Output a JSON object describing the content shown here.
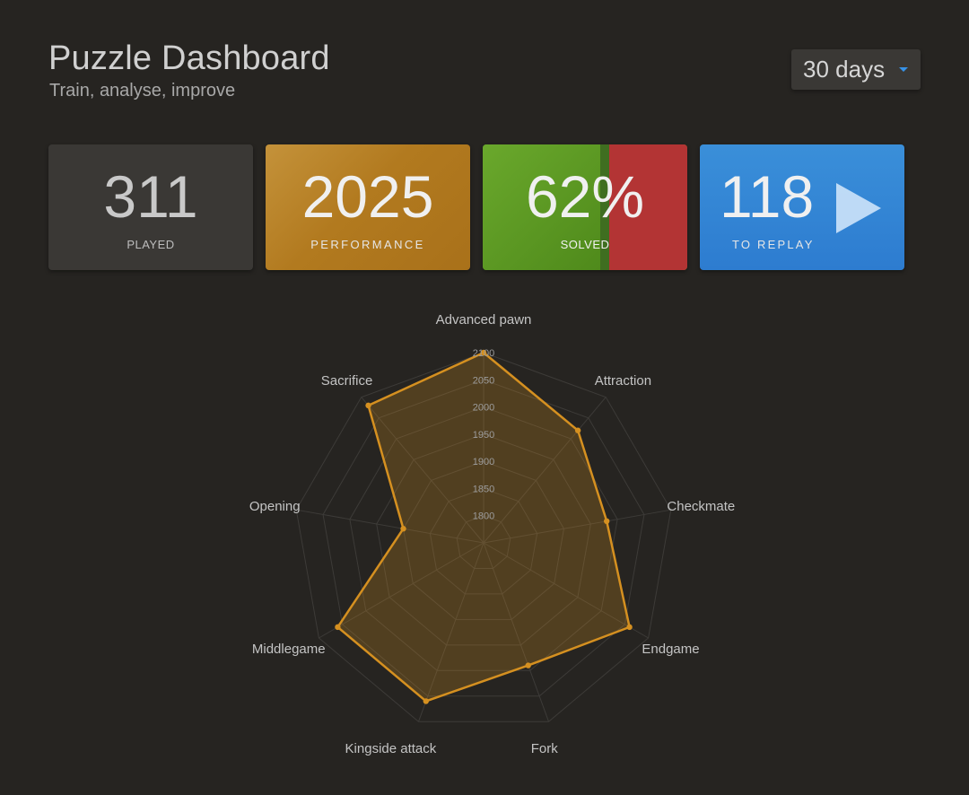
{
  "header": {
    "title": "Puzzle Dashboard",
    "subtitle": "Train, analyse, improve",
    "period": {
      "selected": "30 days"
    }
  },
  "cards": {
    "played": {
      "value": "311",
      "label": "PLAYED"
    },
    "performance": {
      "value": "2025",
      "label": "PERFORMANCE"
    },
    "solved": {
      "value": "62%",
      "label": "SOLVED",
      "percent": 62
    },
    "replay": {
      "value": "118",
      "label": "TO REPLAY"
    }
  },
  "colors": {
    "background": "#262421",
    "played": "#3a3835",
    "performance": "#b27a1f",
    "solved_green": "#629924",
    "solved_red": "#b33434",
    "replay": "#2d7cd0",
    "radar_line": "#d59020",
    "radar_fill": "rgba(213,144,32,0.25)"
  },
  "chart_data": {
    "type": "radar",
    "axes": [
      "Advanced pawn",
      "Attraction",
      "Checkmate",
      "Endgame",
      "Fork",
      "Kingside attack",
      "Middlegame",
      "Opening",
      "Sacrifice"
    ],
    "values": [
      2100,
      2020,
      1980,
      2060,
      1990,
      2060,
      2060,
      1900,
      2080
    ],
    "range": [
      1750,
      2100
    ],
    "ticks": [
      "1800",
      "1850",
      "1900",
      "1950",
      "2000",
      "2050",
      "2100"
    ],
    "tick_values": [
      1800,
      1850,
      1900,
      1950,
      2000,
      2050,
      2100
    ],
    "grid": true
  }
}
